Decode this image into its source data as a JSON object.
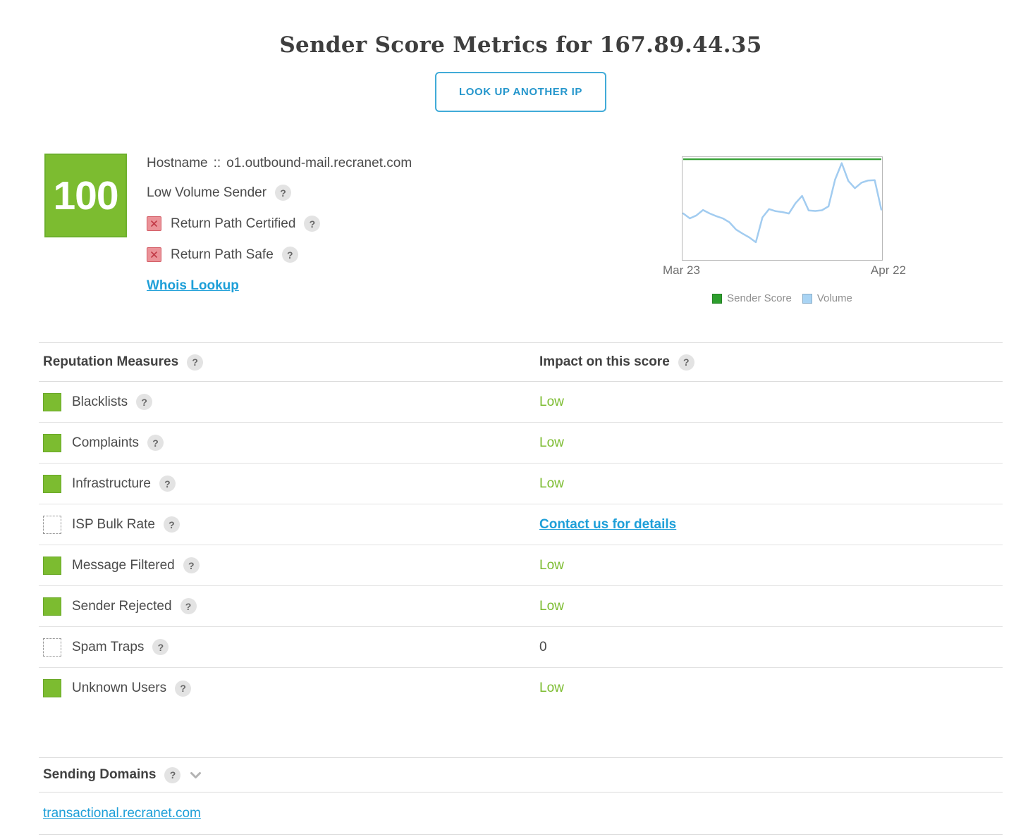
{
  "page": {
    "title": "Sender Score Metrics for 167.89.44.35",
    "lookup_button": "LOOK UP ANOTHER IP"
  },
  "ui": {
    "help_glyph": "?"
  },
  "summary": {
    "score": "100",
    "hostname_label": "Hostname",
    "hostname_separator": "::",
    "hostname": "o1.outbound-mail.recranet.com",
    "volume_label": "Low Volume Sender",
    "certified_label": "Return Path Certified",
    "certified_status": "unchecked-x",
    "safe_label": "Return Path Safe",
    "safe_status": "unchecked-x",
    "whois_link": "Whois Lookup"
  },
  "chart_data": {
    "type": "line",
    "title": "",
    "xlabel": "",
    "ylabel": "",
    "x_tick_labels": [
      "Mar 23",
      "Apr 22"
    ],
    "ylim": [
      0,
      100
    ],
    "grid": false,
    "y_axis_visible": false,
    "legend_position": "bottom",
    "values_unit": "relative (axes unlabeled, estimated % of plot height)",
    "legend": [
      {
        "name": "Sender Score",
        "color": "#2d9e2d"
      },
      {
        "name": "Volume",
        "color": "#a9d4f4"
      }
    ],
    "series": [
      {
        "name": "Sender Score",
        "color": "#3ba33b",
        "values": [
          100,
          100,
          100,
          100,
          100,
          100,
          100,
          100,
          100,
          100,
          100,
          100,
          100,
          100,
          100,
          100,
          100,
          100,
          100,
          100,
          100,
          100,
          100,
          100,
          100,
          100,
          100,
          100,
          100,
          100,
          100
        ]
      },
      {
        "name": "Volume",
        "color": "#a2ccf0",
        "values": [
          45,
          40,
          43,
          48.5,
          45,
          42.3,
          40,
          36,
          28.7,
          24.5,
          20.7,
          15.8,
          41,
          49.4,
          47.3,
          46.4,
          44.9,
          55.3,
          62.8,
          48,
          47.5,
          48.2,
          52.2,
          79.3,
          96,
          78,
          70.6,
          76.2,
          78.4,
          78.8,
          48.9
        ]
      }
    ]
  },
  "reputation": {
    "header": {
      "measures": "Reputation Measures",
      "impact": "Impact on this score"
    },
    "rows": [
      {
        "label": "Blacklists",
        "status": "green",
        "value": "Low",
        "value_type": "low"
      },
      {
        "label": "Complaints",
        "status": "green",
        "value": "Low",
        "value_type": "low"
      },
      {
        "label": "Infrastructure",
        "status": "green",
        "value": "Low",
        "value_type": "low"
      },
      {
        "label": "ISP Bulk Rate",
        "status": "none",
        "value": "Contact us for details",
        "value_type": "link"
      },
      {
        "label": "Message Filtered",
        "status": "green",
        "value": "Low",
        "value_type": "low"
      },
      {
        "label": "Sender Rejected",
        "status": "green",
        "value": "Low",
        "value_type": "low"
      },
      {
        "label": "Spam Traps",
        "status": "none",
        "value": "0",
        "value_type": "number"
      },
      {
        "label": "Unknown Users",
        "status": "green",
        "value": "Low",
        "value_type": "low"
      }
    ]
  },
  "sending_domains": {
    "header": "Sending Domains",
    "domains": [
      "transactional.recranet.com"
    ]
  },
  "colors": {
    "score_green": "#7cbc30",
    "impact_low_green": "#7cbc30",
    "link_blue": "#1e9fd8",
    "button_blue": "#2596cc",
    "chart_score_green": "#3ba33b",
    "chart_volume_blue": "#a2ccf0",
    "checkbox_red_bg": "#eb9298",
    "checkbox_red_x": "#c23b47"
  }
}
